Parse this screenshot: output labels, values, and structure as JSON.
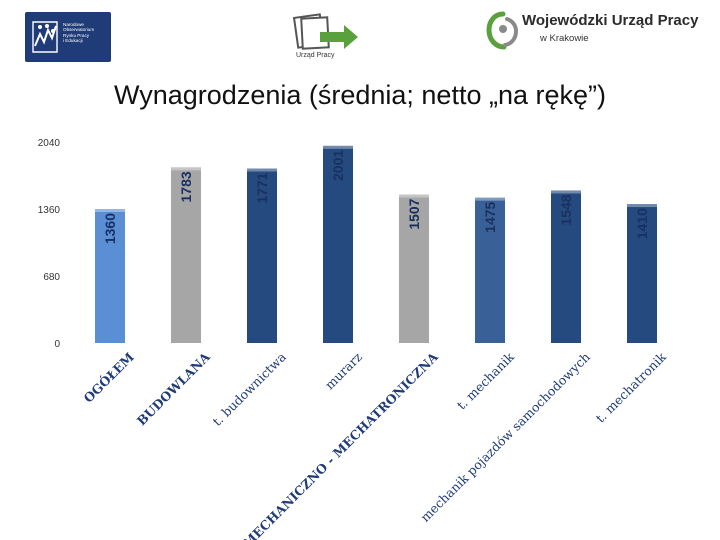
{
  "header": {
    "left_logo_text": [
      "Narodowe",
      "Obserwatorium",
      "Rynku Pracy",
      "i Edukacji"
    ],
    "mid_logo_caption": "Urząd Pracy",
    "right_logo_name": "Wojewódzki Urząd Pracy",
    "right_logo_city": "w Krakowie"
  },
  "colors": {
    "light_blue": "#5a8fd6",
    "grey": "#a6a6a6",
    "dark_blue": "#254a7f",
    "mid_blue": "#3a6098",
    "green": "#5aa03c"
  },
  "chart_data": {
    "type": "bar",
    "title": "Wynagrodzenia (średnia; netto „na rękę”)",
    "xlabel": "",
    "ylabel": "",
    "ylim": [
      0,
      2040
    ],
    "yticks": [
      0,
      680,
      1360,
      2040
    ],
    "grid": false,
    "legend": "none",
    "categories": [
      "OGÓŁEM",
      "BUDOWLANA",
      "t. budownictwa",
      "murarz",
      "MECHANICZNO - MECHATRONICZNA",
      "t. mechanik",
      "mechanik pojazdów samochodowych",
      "t. mechatronik"
    ],
    "values": [
      1360,
      1783,
      1771,
      2001,
      1507,
      1475,
      1548,
      1410
    ],
    "value_labels": [
      "1360",
      "1783",
      "1771",
      "2001",
      "1507",
      "1475",
      "1548",
      "1410"
    ],
    "bar_colors": [
      "#5a8fd6",
      "#a6a6a6",
      "#254a7f",
      "#254a7f",
      "#a6a6a6",
      "#3a6098",
      "#254a7f",
      "#254a7f"
    ]
  }
}
